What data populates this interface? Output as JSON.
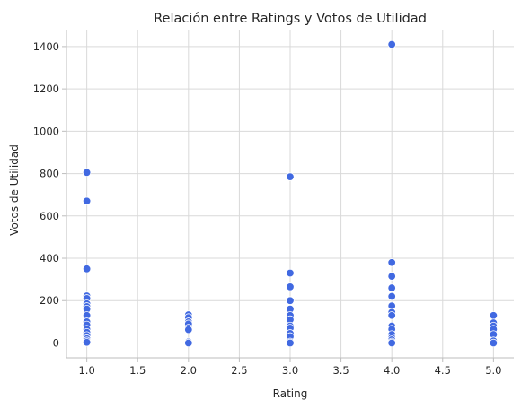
{
  "chart_data": {
    "type": "scatter",
    "title": "Relación entre Ratings y Votos de Utilidad",
    "xlabel": "Rating",
    "ylabel": "Votos de Utilidad",
    "xlim": [
      0.8,
      5.2
    ],
    "ylim": [
      -70,
      1480
    ],
    "xticks": [
      1.0,
      1.5,
      2.0,
      2.5,
      3.0,
      3.5,
      4.0,
      4.5,
      5.0
    ],
    "xtick_labels": [
      "1.0",
      "1.5",
      "2.0",
      "2.5",
      "3.0",
      "3.5",
      "4.0",
      "4.5",
      "5.0"
    ],
    "yticks": [
      0,
      200,
      400,
      600,
      800,
      1000,
      1200,
      1400
    ],
    "ytick_labels": [
      "0",
      "200",
      "400",
      "600",
      "800",
      "1000",
      "1200",
      "1400"
    ],
    "grid": true,
    "marker_color": "#4169e1",
    "marker_edge": "#ffffff",
    "points": [
      {
        "x": 1,
        "y": 805
      },
      {
        "x": 1,
        "y": 670
      },
      {
        "x": 1,
        "y": 350
      },
      {
        "x": 1,
        "y": 222
      },
      {
        "x": 1,
        "y": 210
      },
      {
        "x": 1,
        "y": 185
      },
      {
        "x": 1,
        "y": 172
      },
      {
        "x": 1,
        "y": 160
      },
      {
        "x": 1,
        "y": 130
      },
      {
        "x": 1,
        "y": 100
      },
      {
        "x": 1,
        "y": 85
      },
      {
        "x": 1,
        "y": 65
      },
      {
        "x": 1,
        "y": 50
      },
      {
        "x": 1,
        "y": 35
      },
      {
        "x": 1,
        "y": 20
      },
      {
        "x": 1,
        "y": 10
      },
      {
        "x": 1,
        "y": 3
      },
      {
        "x": 2,
        "y": 133
      },
      {
        "x": 2,
        "y": 120
      },
      {
        "x": 2,
        "y": 100
      },
      {
        "x": 2,
        "y": 90
      },
      {
        "x": 2,
        "y": 70
      },
      {
        "x": 2,
        "y": 63
      },
      {
        "x": 2,
        "y": 5
      },
      {
        "x": 2,
        "y": 0
      },
      {
        "x": 3,
        "y": 785
      },
      {
        "x": 3,
        "y": 330
      },
      {
        "x": 3,
        "y": 265
      },
      {
        "x": 3,
        "y": 200
      },
      {
        "x": 3,
        "y": 160
      },
      {
        "x": 3,
        "y": 130
      },
      {
        "x": 3,
        "y": 110
      },
      {
        "x": 3,
        "y": 80
      },
      {
        "x": 3,
        "y": 70
      },
      {
        "x": 3,
        "y": 45
      },
      {
        "x": 3,
        "y": 30
      },
      {
        "x": 3,
        "y": 5
      },
      {
        "x": 3,
        "y": 0
      },
      {
        "x": 4,
        "y": 1410
      },
      {
        "x": 4,
        "y": 380
      },
      {
        "x": 4,
        "y": 315
      },
      {
        "x": 4,
        "y": 260
      },
      {
        "x": 4,
        "y": 220
      },
      {
        "x": 4,
        "y": 175
      },
      {
        "x": 4,
        "y": 145
      },
      {
        "x": 4,
        "y": 130
      },
      {
        "x": 4,
        "y": 80
      },
      {
        "x": 4,
        "y": 65
      },
      {
        "x": 4,
        "y": 40
      },
      {
        "x": 4,
        "y": 25
      },
      {
        "x": 4,
        "y": 15
      },
      {
        "x": 4,
        "y": 5
      },
      {
        "x": 4,
        "y": 0
      },
      {
        "x": 5,
        "y": 130
      },
      {
        "x": 5,
        "y": 95
      },
      {
        "x": 5,
        "y": 80
      },
      {
        "x": 5,
        "y": 65
      },
      {
        "x": 5,
        "y": 40
      },
      {
        "x": 5,
        "y": 10
      },
      {
        "x": 5,
        "y": 0
      }
    ]
  }
}
